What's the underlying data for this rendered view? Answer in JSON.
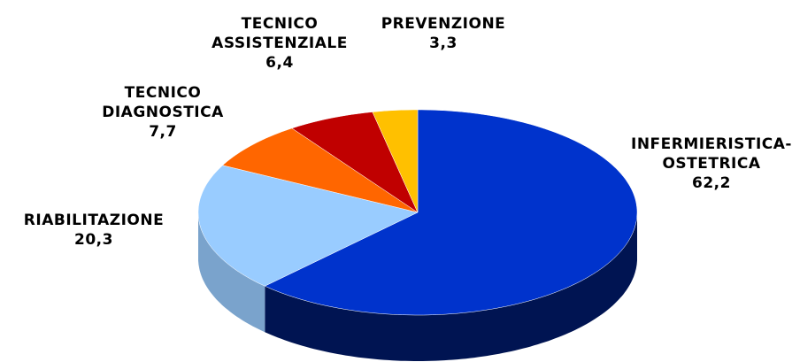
{
  "chart_data": {
    "type": "pie",
    "categories": [
      "INFERMIERISTICA-\nOSTETRICA",
      "RIABILITAZIONE",
      "TECNICO\nDIAGNOSTICA",
      "TECNICO\nASSISTENZIALE",
      "PREVENZIONE"
    ],
    "values": [
      62.2,
      20.3,
      7.7,
      6.4,
      3.3
    ],
    "value_labels": [
      "62,2",
      "20,3",
      "7,7",
      "6,4",
      "3,3"
    ],
    "colors": [
      "#0033cc",
      "#99ccff",
      "#ff6600",
      "#c00000",
      "#ffc000"
    ]
  }
}
